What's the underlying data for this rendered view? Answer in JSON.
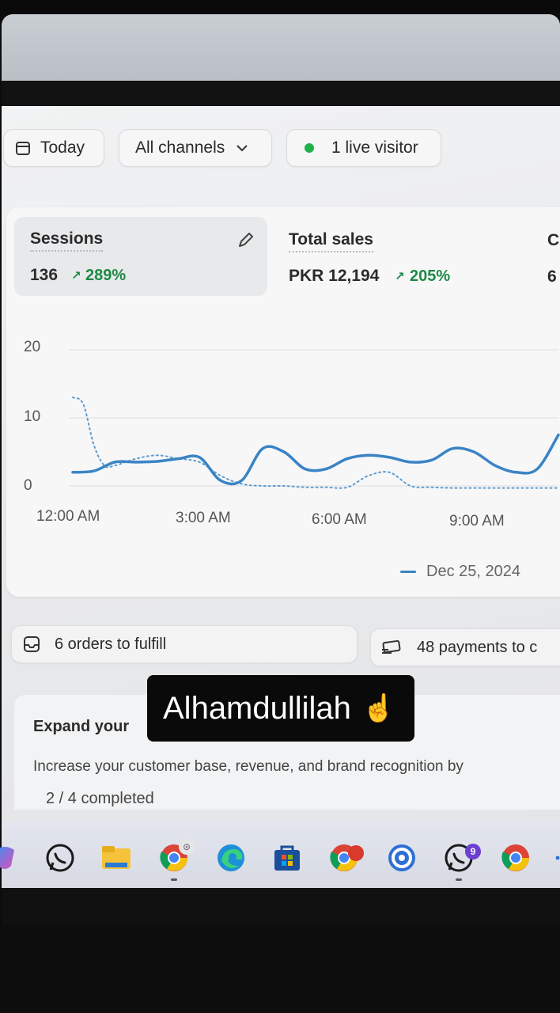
{
  "filters": {
    "date_label": "Today",
    "channel_label": "All channels",
    "live_visitors_label": "1 live visitor"
  },
  "metrics": [
    {
      "title": "Sessions",
      "value": "136",
      "change": "289%"
    },
    {
      "title": "Total sales",
      "value": "PKR 12,194",
      "change": "205%"
    },
    {
      "title": "C",
      "value": "6"
    }
  ],
  "chart_data": {
    "type": "line",
    "x_tick_labels": [
      "12:00 AM",
      "3:00 AM",
      "6:00 AM",
      "9:00 AM"
    ],
    "y_tick_labels": [
      "20",
      "10",
      "0"
    ],
    "ylim": [
      0,
      20
    ],
    "x_range_hours": [
      0,
      11.5
    ],
    "series": [
      {
        "name": "Dec 25, 2024",
        "style": "solid",
        "color": "#3a84c4",
        "x": [
          0,
          0.5,
          1,
          1.5,
          2,
          2.5,
          3,
          3.5,
          4,
          4.5,
          5,
          5.5,
          6,
          6.5,
          7,
          7.5,
          8,
          8.5,
          9,
          9.5,
          10,
          10.5,
          11,
          11.5
        ],
        "y": [
          2,
          2.2,
          3.5,
          3.5,
          3.6,
          4,
          4.2,
          0.8,
          0.8,
          5.5,
          5,
          2.5,
          2.5,
          4,
          4.5,
          4.2,
          3.5,
          3.8,
          5.5,
          5,
          3,
          2,
          2.5,
          7.5
        ]
      },
      {
        "style": "dotted",
        "color": "#3a84c4",
        "x": [
          0,
          0.25,
          0.5,
          0.75,
          1,
          1.5,
          2,
          2.5,
          3,
          3.5,
          4,
          4.5,
          5,
          5.5,
          6,
          6.5,
          7,
          7.5,
          8,
          8.5,
          9,
          9.5,
          10,
          10.5,
          11,
          11.5
        ],
        "y": [
          13,
          12,
          6,
          3,
          3,
          4,
          4.5,
          4,
          3.5,
          1.5,
          0.3,
          0,
          0,
          -0.2,
          -0.2,
          -0.2,
          1.5,
          2,
          0,
          -0.2,
          -0.3,
          -0.3,
          -0.3,
          -0.3,
          -0.3,
          -0.3
        ]
      }
    ],
    "grid": true,
    "legend_position": "bottom-right"
  },
  "tasks": {
    "orders_label": "6 orders to fulfill",
    "payments_label": "48 payments to c"
  },
  "setup": {
    "title": "Expand your",
    "description": "Increase your customer base, revenue, and brand recognition by",
    "progress": "2 / 4 completed"
  },
  "sticker": {
    "text": "Alhamdullilah",
    "emoji": "☝️"
  },
  "taskbar": {
    "apps": [
      "copilot-icon",
      "whatsapp-icon",
      "file-explorer-icon",
      "chrome-icon",
      "edge-icon",
      "microsoft-store-icon",
      "chrome-icon",
      "chrome-remote-icon",
      "whatsapp-icon",
      "chrome-icon"
    ],
    "whatsapp_badge": "9"
  },
  "colors": {
    "accent_line": "#3a84c4",
    "positive": "#1c8a46",
    "live_dot": "#1fb24a"
  }
}
